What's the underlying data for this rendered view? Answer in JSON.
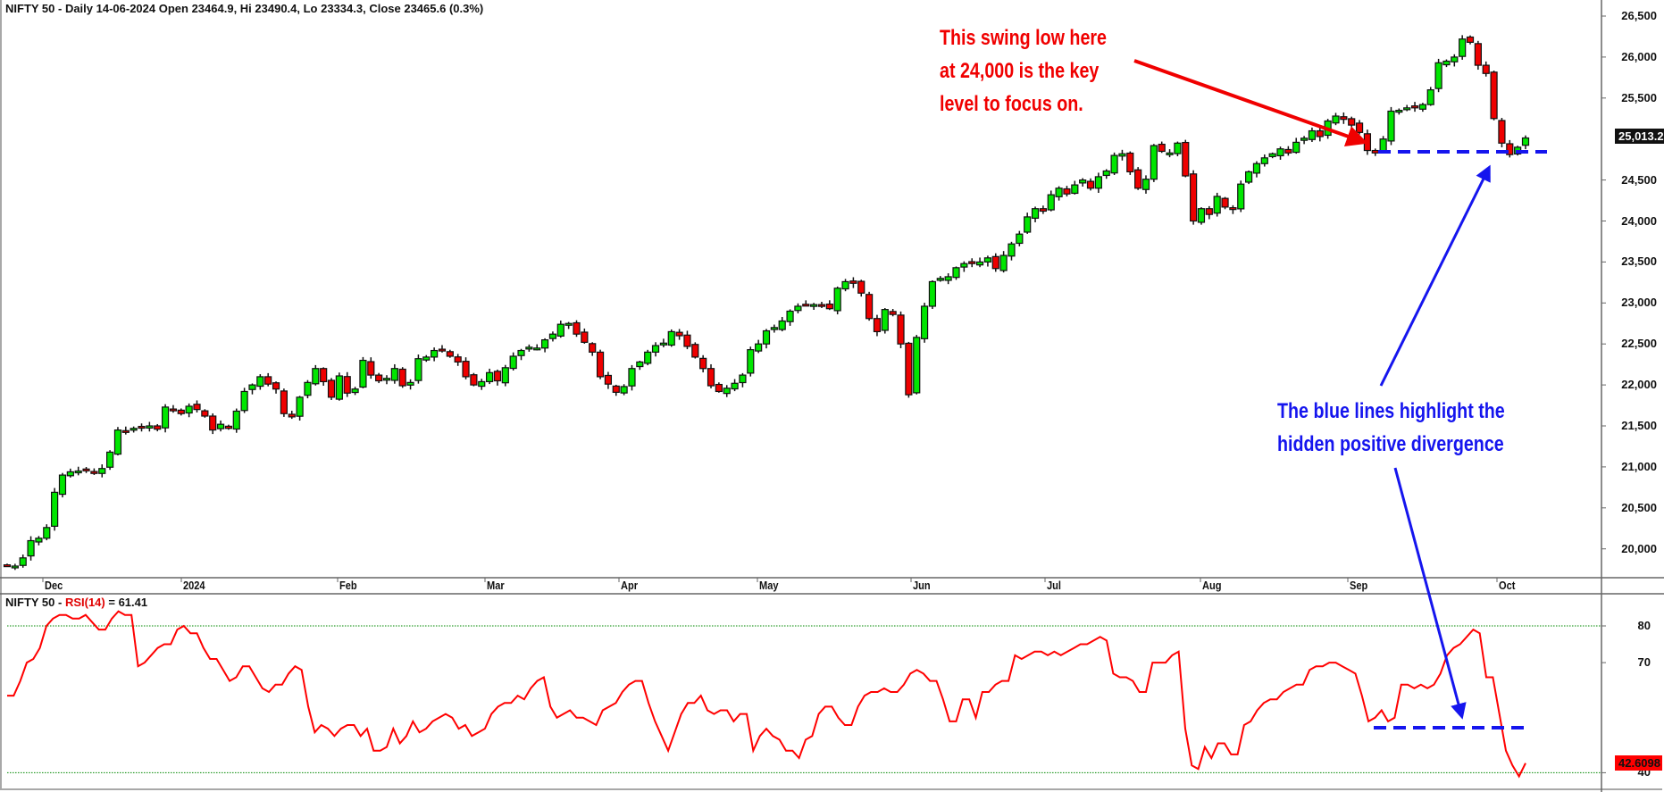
{
  "header": {
    "title": "NIFTY 50 - Daily 14-06-2024 Open 23464.9, Hi 23490.4, Lo 23334.3, Close 23465.6 (0.3%)"
  },
  "rsi_header": {
    "prefix": "NIFTY 50 - ",
    "indicator": "RSI(14)",
    "suffix": " = 61.41"
  },
  "annotations": {
    "red_note": [
      "This swing low here",
      "at 24,000 is the key",
      "level to focus on."
    ],
    "blue_note": [
      "The blue lines highlight the",
      "hidden positive divergence"
    ]
  },
  "price_axis": {
    "labels": [
      "26,500",
      "26,000",
      "25,500",
      "24,500",
      "24,000",
      "23,500",
      "23,000",
      "22,500",
      "22,000",
      "21,500",
      "21,000",
      "20,500",
      "20,000"
    ],
    "last_price_tag": "25,013.2"
  },
  "rsi_axis": {
    "labels": [
      "80",
      "70",
      "40"
    ],
    "last_value_tag": "42.6098"
  },
  "x_axis": {
    "labels": [
      "Dec",
      "2024",
      "Feb",
      "Mar",
      "Apr",
      "May",
      "Jun",
      "Jul",
      "Aug",
      "Sep",
      "Oct"
    ]
  },
  "colors": {
    "up": "#00e600",
    "down": "#ee0000",
    "rsi_line": "#ff0000",
    "guide": "#008800",
    "annotation_red": "#f00000",
    "annotation_blue": "#1515ee"
  },
  "chart_data": [
    {
      "type": "candlestick",
      "title": "NIFTY 50 - Daily",
      "xlabel": "",
      "ylabel": "Price",
      "ylim": [
        19700,
        26700
      ],
      "x_ticks": [
        "Dec",
        "2024",
        "Feb",
        "Mar",
        "Apr",
        "May",
        "Jun",
        "Jul",
        "Aug",
        "Sep",
        "Oct"
      ],
      "y_ticks": [
        20000,
        20500,
        21000,
        21500,
        22000,
        22500,
        23000,
        23500,
        24000,
        24500,
        25000,
        25500,
        26000,
        26500
      ],
      "last_price": 25013.2,
      "closes": [
        19795,
        19790,
        19890,
        20100,
        20130,
        20260,
        20690,
        20900,
        20940,
        20950,
        20960,
        20920,
        20980,
        21180,
        21450,
        21440,
        21470,
        21490,
        21500,
        21460,
        21730,
        21700,
        21650,
        21740,
        21700,
        21620,
        21450,
        21520,
        21470,
        21680,
        21920,
        22000,
        22100,
        22010,
        21950,
        21650,
        21610,
        21850,
        22030,
        22200,
        22040,
        21850,
        22110,
        21900,
        21950,
        22300,
        22120,
        22050,
        22080,
        22200,
        21990,
        22030,
        22320,
        22340,
        22420,
        22430,
        22350,
        22280,
        22100,
        22000,
        22040,
        22150,
        22050,
        22210,
        22350,
        22420,
        22460,
        22450,
        22550,
        22620,
        22740,
        22750,
        22620,
        22520,
        22400,
        22100,
        22010,
        21910,
        21980,
        22200,
        22280,
        22400,
        22480,
        22510,
        22650,
        22600,
        22470,
        22340,
        22200,
        21990,
        21920,
        21960,
        22020,
        22120,
        22430,
        22500,
        22660,
        22700,
        22780,
        22900,
        22960,
        22980,
        22980,
        22970,
        22930,
        23180,
        23260,
        23240,
        23120,
        22810,
        22650,
        22920,
        22860,
        22500,
        21880,
        22580,
        22960,
        23260,
        23300,
        23320,
        23430,
        23480,
        23480,
        23500,
        23550,
        23420,
        23580,
        23720,
        23840,
        24050,
        24150,
        24120,
        24320,
        24400,
        24330,
        24440,
        24500,
        24400,
        24540,
        24610,
        24800,
        24820,
        24600,
        24400,
        24510,
        24920,
        24850,
        24830,
        24950,
        24550,
        24000,
        24150,
        24080,
        24300,
        24170,
        24140,
        24450,
        24600,
        24700,
        24770,
        24820,
        24880,
        24830,
        24960,
        25010,
        25100,
        25030,
        25220,
        25280,
        25240,
        25170,
        25080,
        24860,
        24830,
        25000,
        25340,
        25350,
        25380,
        25380,
        25420,
        25600,
        25930,
        25950,
        26000,
        26220,
        26180,
        25900,
        25800,
        25250,
        24950,
        24810,
        24900,
        25013
      ],
      "annotations": [
        {
          "text": "This swing low here at 24,000 is the key level to focus on.",
          "color": "red"
        },
        {
          "text": "The blue lines highlight the hidden positive divergence",
          "color": "blue"
        }
      ],
      "support_line_price": 24790
    },
    {
      "type": "line",
      "title": "NIFTY 50 - RSI(14) = 61.41",
      "ylim": [
        36,
        86
      ],
      "y_ticks": [
        40,
        70,
        80
      ],
      "guides": [
        80,
        40
      ],
      "last_value": 42.6098,
      "values": [
        61,
        61,
        65,
        70,
        71,
        74,
        80,
        82,
        83,
        83,
        82,
        82,
        83,
        81,
        79,
        79,
        82,
        84,
        83,
        83,
        69,
        70,
        72,
        74,
        75,
        75,
        79,
        80,
        78,
        78,
        74,
        71,
        71,
        68,
        65,
        66,
        69,
        69,
        66,
        63,
        62,
        64,
        64,
        67,
        69,
        68,
        58,
        51,
        53,
        52,
        50,
        52,
        53,
        53,
        50,
        52,
        46,
        46,
        47,
        52,
        48,
        50,
        54,
        51,
        52,
        54,
        55,
        56,
        55,
        52,
        53,
        50,
        51,
        52,
        56,
        58,
        59,
        59,
        61,
        60,
        63,
        65,
        66,
        58,
        55,
        56,
        57,
        55,
        55,
        54,
        53,
        57,
        58,
        59,
        62,
        64,
        65,
        65,
        59,
        54,
        50,
        46,
        51,
        56,
        59,
        59,
        61,
        57,
        56,
        57,
        57,
        54,
        56,
        56,
        46,
        50,
        52,
        50,
        49,
        46,
        46,
        44,
        49,
        50,
        56,
        58,
        58,
        55,
        53,
        53,
        58,
        61,
        62,
        62,
        63,
        62,
        62,
        64,
        67,
        68,
        67,
        65,
        65,
        60,
        54,
        54,
        60,
        60,
        55,
        62,
        62,
        64,
        65,
        65,
        72,
        71,
        72,
        73,
        73,
        72,
        73,
        72,
        73,
        74,
        75,
        75,
        76,
        77,
        76,
        67,
        66,
        66,
        65,
        62,
        62,
        70,
        70,
        70,
        72,
        73,
        52,
        42,
        41,
        47,
        44,
        48,
        48,
        45,
        45,
        53,
        54,
        57,
        59,
        60,
        60,
        62,
        63,
        64,
        64,
        68,
        69,
        69,
        70,
        70,
        69,
        68,
        67,
        61,
        54,
        55,
        57,
        54,
        55,
        64,
        64,
        63,
        64,
        63,
        64,
        67,
        72,
        74,
        75,
        77,
        79,
        78,
        66,
        66,
        56,
        46,
        42,
        39,
        42.6
      ]
    }
  ]
}
